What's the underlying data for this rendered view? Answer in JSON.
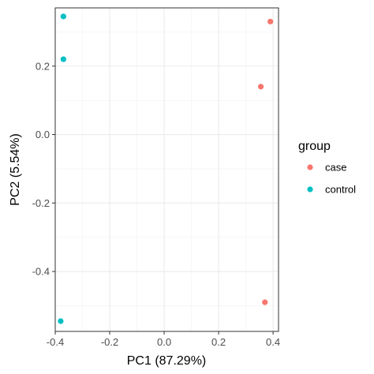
{
  "chart_data": {
    "type": "scatter",
    "xlabel": "PC1 (87.29%)",
    "ylabel": "PC2 (5.54%)",
    "xlim": [
      -0.4,
      0.42
    ],
    "ylim": [
      -0.575,
      0.37
    ],
    "xticks": [
      -0.4,
      -0.2,
      0.0,
      0.2,
      0.4
    ],
    "xtick_labels": [
      "-0.4",
      "-0.2",
      "0.0",
      "0.2",
      "0.4"
    ],
    "yticks": [
      0.2,
      0.0,
      -0.2,
      -0.4
    ],
    "ytick_labels": [
      "0.2",
      "0.0",
      "-0.2",
      "-0.4"
    ],
    "grid": true,
    "legend_position": "right",
    "legend_title": "group",
    "series": [
      {
        "name": "case",
        "color": "#F8766D",
        "points": [
          {
            "x": 0.39,
            "y": 0.33
          },
          {
            "x": 0.355,
            "y": 0.14
          },
          {
            "x": 0.37,
            "y": -0.49
          }
        ]
      },
      {
        "name": "control",
        "color": "#00BFC4",
        "points": [
          {
            "x": -0.37,
            "y": 0.345
          },
          {
            "x": -0.37,
            "y": 0.22
          },
          {
            "x": -0.38,
            "y": -0.545
          }
        ]
      }
    ]
  }
}
